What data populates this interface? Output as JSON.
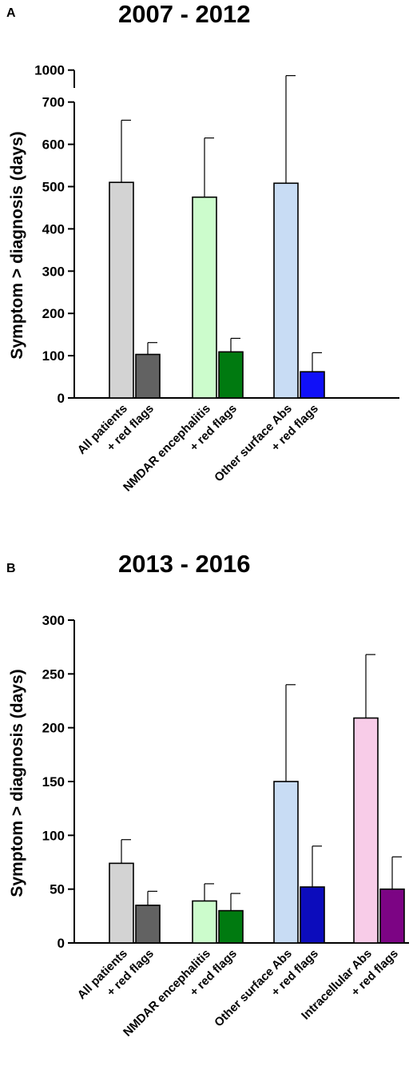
{
  "chart_data": [
    {
      "type": "bar",
      "panel_label": "A",
      "title": "2007 - 2012",
      "ylabel": "Symptom > diagnosis  (days)",
      "xlabel": "",
      "ylim": [
        0,
        1000
      ],
      "axis_break": [
        700,
        1000
      ],
      "yticks": [
        "0",
        "100",
        "200",
        "300",
        "400",
        "500",
        "600",
        "700",
        "1000"
      ],
      "categories": [
        "All patients",
        "+ red flags",
        "NMDAR encephalitis",
        "+ red flags",
        "Other surface Abs",
        "+ red flags"
      ],
      "values": [
        510,
        103,
        475,
        109,
        508,
        62
      ],
      "errors": [
        147,
        28,
        140,
        32,
        440,
        45
      ],
      "colors": [
        "#d3d3d3",
        "#626262",
        "#ccfccc",
        "#007a10",
        "#c8dcf4",
        "#1010f8"
      ]
    },
    {
      "type": "bar",
      "panel_label": "B",
      "title": "2013 - 2016",
      "ylabel": "Symptom > diagnosis  (days)",
      "xlabel": "",
      "ylim": [
        0,
        300
      ],
      "yticks": [
        "0",
        "50",
        "100",
        "150",
        "200",
        "250",
        "300"
      ],
      "categories": [
        "All patients",
        "+ red flags",
        "NMDAR encephalitis",
        "+ red flags",
        "Other surface Abs",
        "+ red flags",
        "Intracellular Abs",
        "+ red flags"
      ],
      "values": [
        74,
        35,
        39,
        30,
        150,
        52,
        209,
        50
      ],
      "errors": [
        22,
        13,
        16,
        16,
        90,
        38,
        59,
        30
      ],
      "colors": [
        "#d3d3d3",
        "#626262",
        "#ccfccc",
        "#007a10",
        "#c8dcf4",
        "#0c0cbc",
        "#f8cce8",
        "#7c0484"
      ]
    }
  ]
}
